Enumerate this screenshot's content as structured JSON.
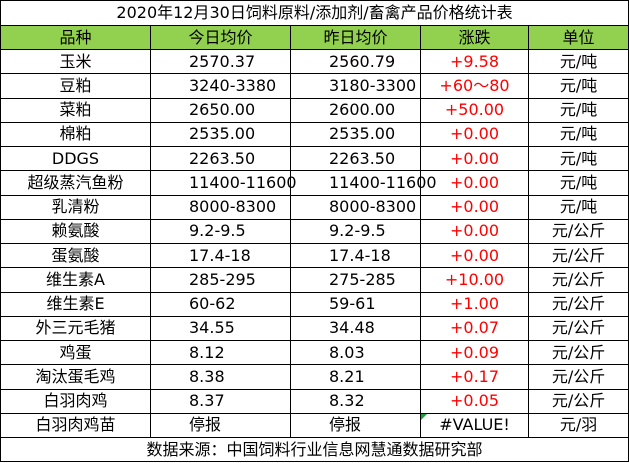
{
  "title": "2020年12月30日饲料原料/添加剂/畜禽产品价格统计表",
  "header": [
    "品种",
    "今日均价",
    "昨日均价",
    "涨跌",
    "单位"
  ],
  "rows": [
    [
      "玉米",
      "2570.37",
      "2560.79",
      "+9.58",
      "元/吨"
    ],
    [
      "豆粕",
      "3240-3380",
      "3180-3300",
      "+60～80",
      "元/吨"
    ],
    [
      "菜粕",
      "2650.00",
      "2600.00",
      "+50.00",
      "元/吨"
    ],
    [
      "棉粕",
      "2535.00",
      "2535.00",
      "+0.00",
      "元/吨"
    ],
    [
      "DDGS",
      "2263.50",
      "2263.50",
      "+0.00",
      "元/吨"
    ],
    [
      "超级蒸汽鱼粉",
      "11400-11600",
      "11400-11600",
      "+0.00",
      "元/吨"
    ],
    [
      "乳清粉",
      "8000-8300",
      "8000-8300",
      "+0.00",
      "元/吨"
    ],
    [
      "赖氨酸",
      "9.2-9.5",
      "9.2-9.5",
      "+0.00",
      "元/公斤"
    ],
    [
      "蛋氨酸",
      "17.4-18",
      "17.4-18",
      "+0.00",
      "元/公斤"
    ],
    [
      "维生素A",
      "285-295",
      "275-285",
      "+10.00",
      "元/公斤"
    ],
    [
      "维生素E",
      "60-62",
      "59-61",
      "+1.00",
      "元/公斤"
    ],
    [
      "外三元毛猪",
      "34.55",
      "34.48",
      "+0.07",
      "元/公斤"
    ],
    [
      "鸡蛋",
      "8.12",
      "8.03",
      "+0.09",
      "元/公斤"
    ],
    [
      "淘汰蛋毛鸡",
      "8.38",
      "8.21",
      "+0.17",
      "元/公斤"
    ],
    [
      "白羽肉鸡",
      "8.37",
      "8.32",
      "+0.05",
      "元/公斤"
    ],
    [
      "白羽肉鸡苗",
      "停报",
      "停报",
      "#VALUE!",
      "元/羽"
    ]
  ],
  "footer": "数据来源：中国饲料行业信息网慧通数据研究部"
}
